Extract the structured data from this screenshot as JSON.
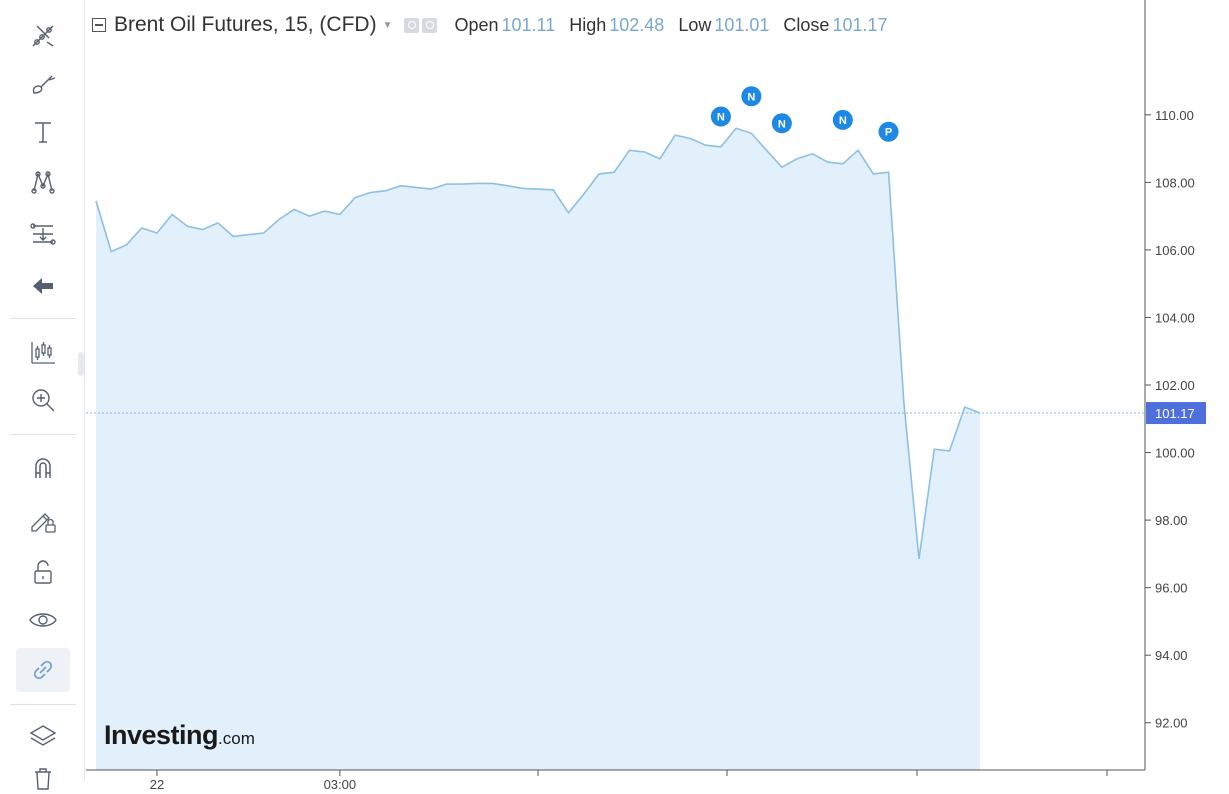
{
  "legend": {
    "symbol": "Brent Oil Futures, 15, (CFD)",
    "open_label": "Open",
    "open_value": "101.11",
    "high_label": "High",
    "high_value": "102.48",
    "low_label": "Low",
    "low_value": "101.01",
    "close_label": "Close",
    "close_value": "101.17"
  },
  "toolbar": {
    "items": [
      {
        "icon": "crosshair-lines-icon"
      },
      {
        "icon": "brush-icon"
      },
      {
        "icon": "text-icon"
      },
      {
        "icon": "pattern-icon"
      },
      {
        "icon": "fib-levels-icon"
      },
      {
        "icon": "back-arrow-icon"
      },
      {
        "icon": "measure-icon"
      },
      {
        "icon": "zoom-in-icon"
      },
      {
        "icon": "magnet-icon"
      },
      {
        "icon": "lock-drawing-icon"
      },
      {
        "icon": "unlock-icon"
      },
      {
        "icon": "eye-icon"
      },
      {
        "icon": "link-icon"
      },
      {
        "icon": "layers-icon"
      },
      {
        "icon": "trash-icon"
      }
    ]
  },
  "colors": {
    "line": "#8ebfe2",
    "area": "#e1f0fb",
    "price_label_bg": "#4f6fdc",
    "marker": "#1e88e5",
    "price_line": "#8fb3d9"
  },
  "logo": {
    "main": "Investing",
    "suffix": ".com"
  },
  "chart_data": {
    "type": "area",
    "ylim": [
      90.6,
      113.4
    ],
    "yticks": [
      "110.00",
      "108.00",
      "106.00",
      "104.00",
      "102.00",
      "100.00",
      "98.00",
      "96.00",
      "94.00",
      "92.00"
    ],
    "ytick_values": [
      110,
      108,
      106,
      104,
      102,
      100,
      98,
      96,
      94,
      92
    ],
    "last_price": 101.17,
    "last_price_label": "101.17",
    "values": [
      107.45,
      105.95,
      106.15,
      106.65,
      106.5,
      107.05,
      106.7,
      106.6,
      106.8,
      106.4,
      106.45,
      106.5,
      106.9,
      107.2,
      107.0,
      107.15,
      107.05,
      107.55,
      107.7,
      107.75,
      107.9,
      107.85,
      107.8,
      107.95,
      107.95,
      107.97,
      107.97,
      107.9,
      107.82,
      107.8,
      107.78,
      107.1,
      107.65,
      108.25,
      108.3,
      108.95,
      108.9,
      108.7,
      109.4,
      109.3,
      109.1,
      109.05,
      109.6,
      109.45,
      108.95,
      108.45,
      108.7,
      108.85,
      108.6,
      108.55,
      108.95,
      108.25,
      108.3,
      101.5,
      96.85,
      100.1,
      100.05,
      101.35,
      101.17
    ],
    "annotations": [
      {
        "label": "N",
        "index": 41,
        "y": 109.95
      },
      {
        "label": "N",
        "index": 43,
        "y": 110.55
      },
      {
        "label": "N",
        "index": 45,
        "y": 109.75
      },
      {
        "label": "N",
        "index": 49,
        "y": 109.85
      },
      {
        "label": "P",
        "index": 52,
        "y": 109.5
      }
    ],
    "xticks": [
      {
        "label": "22",
        "index": 4
      },
      {
        "label": "03:00",
        "index": 16
      }
    ],
    "grid": false
  }
}
